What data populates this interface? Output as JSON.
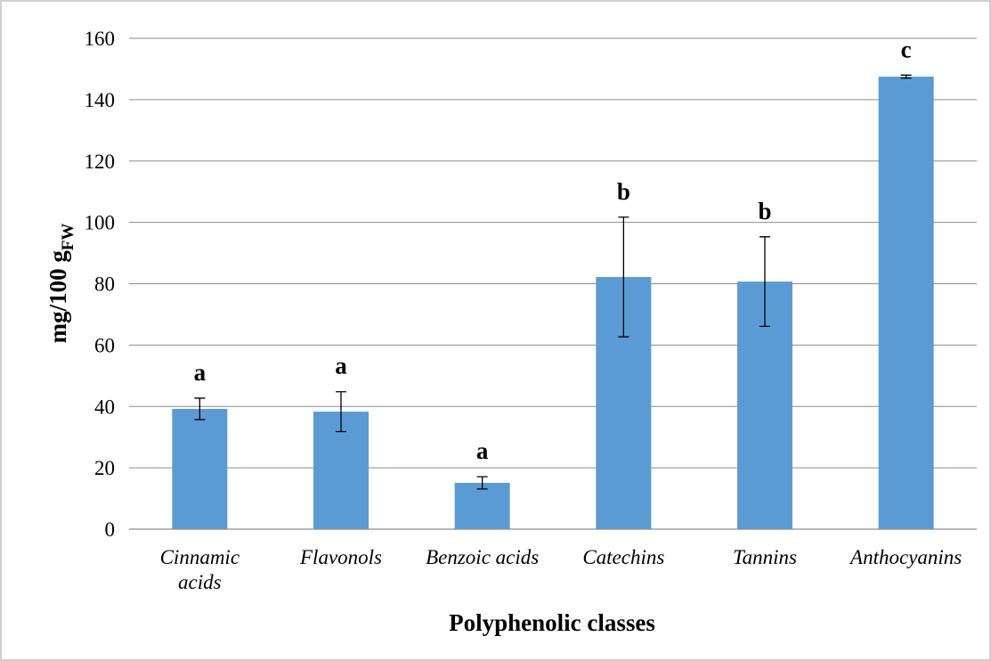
{
  "chart_data": {
    "type": "bar",
    "categories": [
      "Cinnamic acids",
      "Flavonols",
      "Benzoic acids",
      "Catechins",
      "Tannins",
      "Anthocyanins"
    ],
    "values": [
      39.2,
      38.3,
      15.1,
      82.2,
      80.7,
      147.5
    ],
    "errors": [
      3.5,
      6.5,
      2.0,
      19.5,
      14.6,
      0.5
    ],
    "annotations": [
      "a",
      "a",
      "a",
      "b",
      "b",
      "c"
    ],
    "color": "#5b9bd5",
    "ylabel": "mg/100 g",
    "ylabel_subscript": "FW",
    "xlabel": "Polyphenolic classes",
    "ylim": [
      0,
      160
    ],
    "yticks": [
      0,
      20,
      40,
      60,
      80,
      100,
      120,
      140,
      160
    ],
    "grid": true
  }
}
